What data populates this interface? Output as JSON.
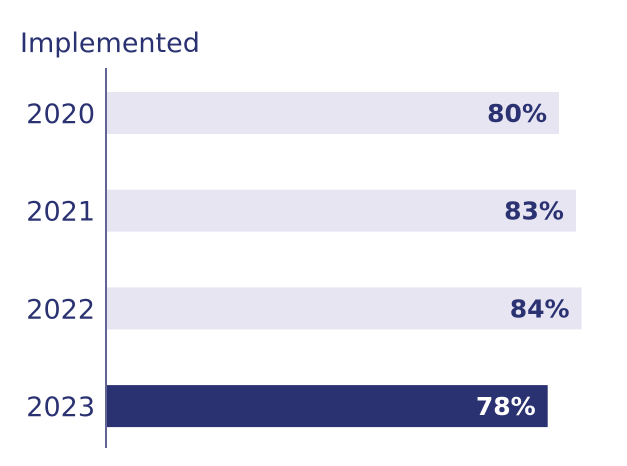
{
  "chart_data": {
    "type": "bar",
    "orientation": "horizontal",
    "title": "Implemented",
    "categories": [
      "2020",
      "2021",
      "2022",
      "2023"
    ],
    "values": [
      80,
      83,
      84,
      78
    ],
    "value_labels": [
      "80%",
      "83%",
      "84%",
      "78%"
    ],
    "highlight_index": 3,
    "xlim": [
      0,
      100
    ],
    "grid": false,
    "legend": "none"
  },
  "colors": {
    "bar_default": "#e8e5f3",
    "bar_highlight": "#2b3272",
    "label_on_light": "#2b3272",
    "label_on_dark": "#ffffff",
    "axis": "#2b3272",
    "text": "#2b3272"
  }
}
